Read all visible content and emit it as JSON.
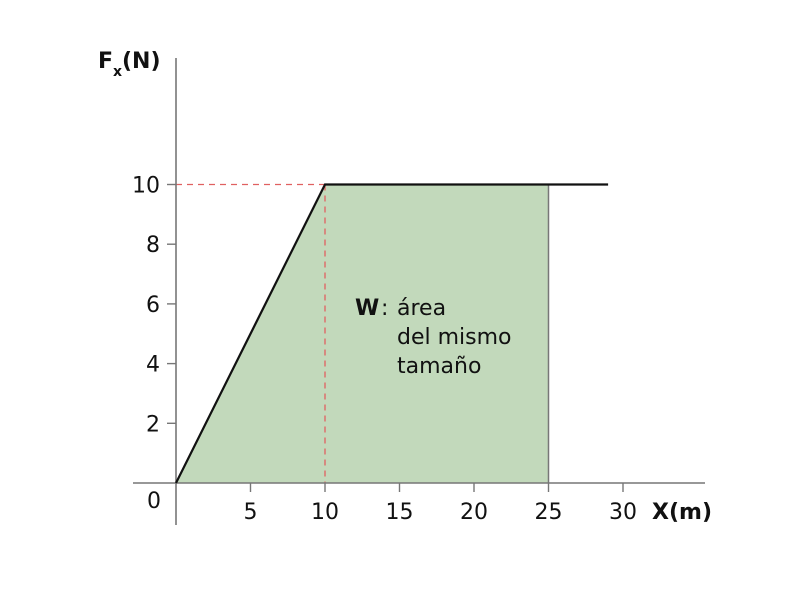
{
  "chart_data": {
    "type": "area",
    "x": [
      0,
      10,
      25
    ],
    "series": [
      {
        "values": [
          0,
          10,
          10
        ]
      }
    ],
    "line": {
      "x": [
        0,
        10,
        29
      ],
      "y": [
        0,
        10,
        10
      ]
    },
    "reference": {
      "x": 10,
      "y": 10
    },
    "xticks": [
      5,
      10,
      15,
      20,
      25,
      30
    ],
    "yticks": [
      2,
      4,
      6,
      8,
      10
    ],
    "origin_label": "0",
    "xlim": [
      0,
      35
    ],
    "ylim": [
      0,
      14
    ],
    "xlabel": "X(m)",
    "ylabel_main": "F",
    "ylabel_sub": "x",
    "ylabel_unit": "(N)",
    "annotation": {
      "symbol": "W",
      "colon": ":",
      "lines": [
        "área",
        "del mismo",
        "tamaño"
      ]
    },
    "fill_color": "#c2d9bb",
    "line_color": "#111111",
    "reference_color": "#e06060",
    "axis_color": "#777777",
    "grid": false
  }
}
